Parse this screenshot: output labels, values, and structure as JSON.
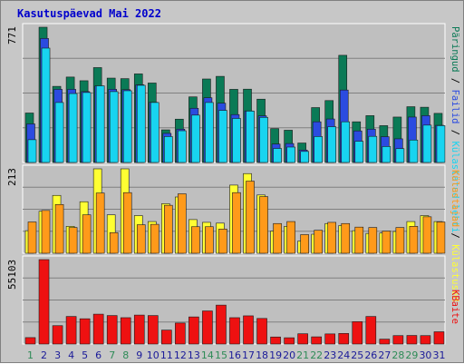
{
  "title": "Kasutuspäevad Mai 2022",
  "colors": {
    "background": "#c7c7c7",
    "panel": "#bfbfbf",
    "grid": "#808080",
    "pages": "#0a7a56",
    "files": "#2b4be0",
    "hits": "#18d4f0",
    "visits": "#ffff33",
    "hosts": "#ff9a1a",
    "kbytes": "#ee1111",
    "weekend": "#2e8b57",
    "weekday": "#1a1a99"
  },
  "chart_data": [
    {
      "type": "bar",
      "name": "hits-pages-files",
      "ymax_label": "771",
      "ylim": [
        0,
        771
      ],
      "categories": [
        "1",
        "2",
        "3",
        "4",
        "5",
        "6",
        "7",
        "8",
        "9",
        "10",
        "11",
        "12",
        "13",
        "14",
        "15",
        "16",
        "17",
        "18",
        "19",
        "20",
        "21",
        "22",
        "23",
        "24",
        "25",
        "26",
        "27",
        "28",
        "29",
        "30",
        "31"
      ],
      "weekend_days": [
        "1",
        "7",
        "8",
        "14",
        "15",
        "21",
        "22",
        "28",
        "29"
      ],
      "legend": [
        "Päringud",
        "Failid",
        "Külastatud lehti"
      ],
      "series": [
        {
          "name": "Päringud",
          "color": "#0a7a56",
          "values": [
            282,
            771,
            434,
            487,
            466,
            541,
            481,
            478,
            505,
            453,
            186,
            247,
            374,
            476,
            491,
            417,
            418,
            361,
            193,
            184,
            111,
            313,
            353,
            611,
            232,
            267,
            210,
            259,
            318,
            315,
            280
          ]
        },
        {
          "name": "Failid",
          "color": "#2b4be0",
          "values": [
            220,
            707,
            417,
            417,
            404,
            436,
            417,
            415,
            443,
            343,
            166,
            190,
            309,
            369,
            338,
            273,
            294,
            266,
            105,
            108,
            71,
            232,
            248,
            413,
            180,
            190,
            147,
            135,
            259,
            267,
            212
          ]
        },
        {
          "name": "Külastatud lehti",
          "color": "#18d4f0",
          "values": [
            130,
            652,
            342,
            393,
            399,
            437,
            404,
            409,
            440,
            342,
            148,
            181,
            270,
            342,
            297,
            251,
            293,
            257,
            80,
            88,
            63,
            148,
            204,
            232,
            121,
            149,
            91,
            79,
            128,
            213,
            210
          ]
        }
      ]
    },
    {
      "type": "bar",
      "name": "visits-hosts",
      "ymax_label": "213",
      "ylim": [
        0,
        213
      ],
      "categories": [
        "1",
        "2",
        "3",
        "4",
        "5",
        "6",
        "7",
        "8",
        "9",
        "10",
        "11",
        "12",
        "13",
        "14",
        "15",
        "16",
        "17",
        "18",
        "19",
        "20",
        "21",
        "22",
        "23",
        "24",
        "25",
        "26",
        "27",
        "28",
        "29",
        "30",
        "31"
      ],
      "legend": [
        "Külastused",
        "Külastajad"
      ],
      "series": [
        {
          "name": "Külastused",
          "color": "#ffff33",
          "values": [
            57,
            106,
            146,
            68,
            130,
            213,
            97,
            213,
            95,
            80,
            125,
            142,
            85,
            78,
            76,
            172,
            201,
            147,
            56,
            68,
            31,
            48,
            75,
            70,
            57,
            50,
            51,
            55,
            80,
            95,
            80
          ]
        },
        {
          "name": "Külastajad",
          "color": "#ff9a1a",
          "values": [
            79,
            108,
            123,
            65,
            97,
            152,
            52,
            153,
            72,
            73,
            121,
            150,
            67,
            67,
            61,
            153,
            182,
            143,
            75,
            80,
            47,
            58,
            78,
            75,
            66,
            65,
            56,
            65,
            68,
            92,
            79
          ]
        }
      ]
    },
    {
      "type": "bar",
      "name": "kbytes",
      "ymax_label": "55103",
      "ylim": [
        0,
        55103
      ],
      "categories": [
        "1",
        "2",
        "3",
        "4",
        "5",
        "6",
        "7",
        "8",
        "9",
        "10",
        "11",
        "12",
        "13",
        "14",
        "15",
        "16",
        "17",
        "18",
        "19",
        "20",
        "21",
        "22",
        "23",
        "24",
        "25",
        "26",
        "27",
        "28",
        "29",
        "30",
        "31"
      ],
      "legend": [
        "KBaite"
      ],
      "series": [
        {
          "name": "KBaite",
          "color": "#ee1111",
          "values": [
            4200,
            55103,
            12000,
            18000,
            16500,
            19500,
            18600,
            17200,
            18900,
            18600,
            9100,
            13700,
            17700,
            21600,
            25400,
            17200,
            18400,
            16700,
            4600,
            4100,
            6700,
            4700,
            6600,
            6900,
            14600,
            18000,
            3200,
            5500,
            5600,
            5500,
            8000
          ]
        }
      ]
    }
  ],
  "right_labels": {
    "panel1": {
      "pages": "Päringud",
      "sep1": " / ",
      "files": "Failid",
      "sep2": " / ",
      "hits": "Külastatud lehti"
    },
    "panel2": {
      "hosts": "Külastajad",
      "sep": " / ",
      "visits": "Külastused"
    },
    "panel3": {
      "kbytes": "KBaite"
    }
  }
}
